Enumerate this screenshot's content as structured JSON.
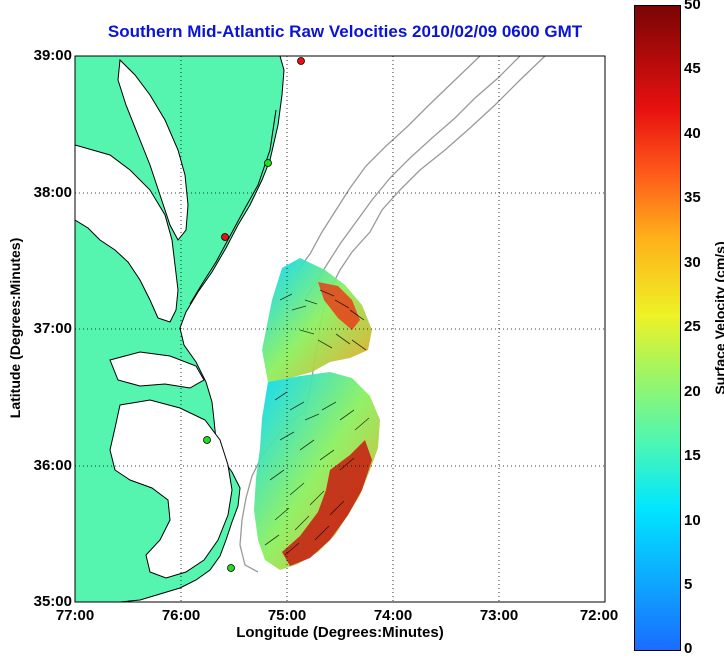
{
  "title": "Southern Mid-Atlantic Raw Velocities 2010/02/09 0600 GMT",
  "x_axis": {
    "label": "Longitude (Degrees:Minutes)",
    "ticks": [
      "77:00",
      "76:00",
      "75:00",
      "74:00",
      "73:00",
      "72:00"
    ]
  },
  "y_axis": {
    "label": "Latitude (Degrees:Minutes)",
    "ticks": [
      "39:00",
      "38:00",
      "37:00",
      "36:00",
      "35:00"
    ]
  },
  "colorbar": {
    "label": "Surface Velocity (cm/s)",
    "ticks": [
      "50",
      "45",
      "40",
      "35",
      "30",
      "25",
      "20",
      "15",
      "10",
      "5",
      "0"
    ],
    "range": [
      0,
      50
    ],
    "colors": [
      "#1a6dff",
      "#00e6ff",
      "#4cf7b4",
      "#a8f55a",
      "#eef226",
      "#ffb01a",
      "#ff5a1a",
      "#e81010",
      "#7a0505"
    ]
  },
  "map": {
    "land_color": "#55f5b0",
    "water_color": "#ffffff",
    "bathymetry_color": "#9a9a9a",
    "grid": true
  }
}
